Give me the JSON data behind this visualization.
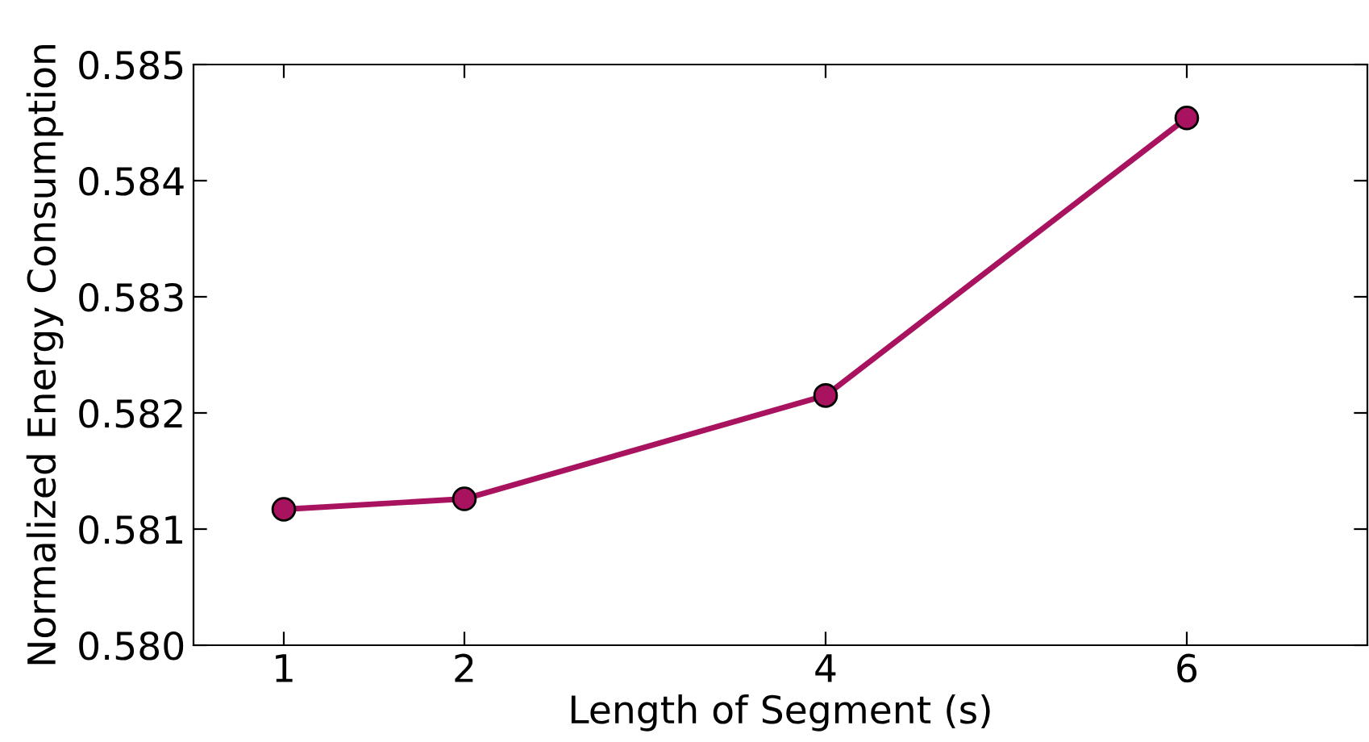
{
  "chart_data": {
    "type": "line",
    "xlabel": "Length of Segment (s)",
    "ylabel": "Normalized Energy Consumption",
    "x": [
      1,
      2,
      4,
      6
    ],
    "series": [
      {
        "color": "#a8125f",
        "values": [
          0.58117,
          0.58126,
          0.58215,
          0.58454
        ]
      }
    ],
    "xlim": [
      0.5,
      7
    ],
    "xticks": [
      1,
      2,
      4,
      6
    ],
    "ylim": [
      0.58,
      0.585
    ],
    "yticks": [
      {
        "value": 0.58,
        "label": "0.580"
      },
      0.581,
      0.582,
      0.583,
      0.584,
      0.585
    ],
    "grid": false,
    "marker": "circle",
    "line_style": "solid"
  }
}
